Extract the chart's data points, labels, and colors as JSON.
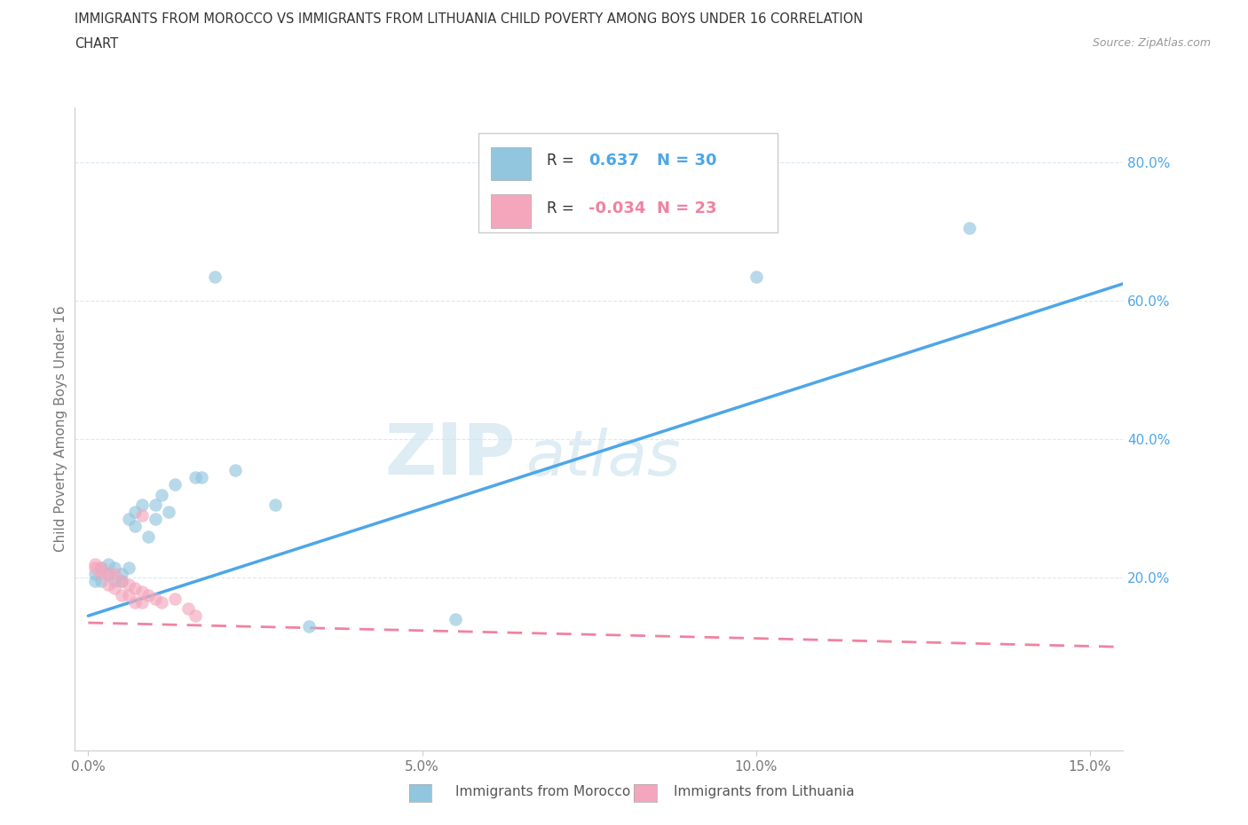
{
  "title_line1": "IMMIGRANTS FROM MOROCCO VS IMMIGRANTS FROM LITHUANIA CHILD POVERTY AMONG BOYS UNDER 16 CORRELATION",
  "title_line2": "CHART",
  "source": "Source: ZipAtlas.com",
  "ylabel": "Child Poverty Among Boys Under 16",
  "xlim": [
    -0.002,
    0.155
  ],
  "ylim": [
    -0.05,
    0.88
  ],
  "xticks": [
    0.0,
    0.05,
    0.1,
    0.15
  ],
  "xticklabels": [
    "0.0%",
    "5.0%",
    "10.0%",
    "15.0%"
  ],
  "ytick_positions": [
    0.2,
    0.4,
    0.6,
    0.8
  ],
  "ytick_labels": [
    "20.0%",
    "40.0%",
    "60.0%",
    "80.0%"
  ],
  "morocco_color": "#92c5de",
  "lithuania_color": "#f4a6bc",
  "morocco_line_color": "#4da6e8",
  "lithuania_line_color": "#f082a0",
  "morocco_R": 0.637,
  "morocco_N": 30,
  "lithuania_R": -0.034,
  "lithuania_N": 23,
  "morocco_scatter": [
    [
      0.001,
      0.205
    ],
    [
      0.001,
      0.195
    ],
    [
      0.002,
      0.215
    ],
    [
      0.002,
      0.195
    ],
    [
      0.003,
      0.22
    ],
    [
      0.003,
      0.205
    ],
    [
      0.004,
      0.215
    ],
    [
      0.004,
      0.195
    ],
    [
      0.005,
      0.205
    ],
    [
      0.005,
      0.195
    ],
    [
      0.006,
      0.215
    ],
    [
      0.006,
      0.285
    ],
    [
      0.007,
      0.295
    ],
    [
      0.007,
      0.275
    ],
    [
      0.008,
      0.305
    ],
    [
      0.009,
      0.26
    ],
    [
      0.01,
      0.285
    ],
    [
      0.01,
      0.305
    ],
    [
      0.011,
      0.32
    ],
    [
      0.012,
      0.295
    ],
    [
      0.013,
      0.335
    ],
    [
      0.016,
      0.345
    ],
    [
      0.017,
      0.345
    ],
    [
      0.019,
      0.635
    ],
    [
      0.022,
      0.355
    ],
    [
      0.028,
      0.305
    ],
    [
      0.033,
      0.13
    ],
    [
      0.055,
      0.14
    ],
    [
      0.1,
      0.635
    ],
    [
      0.132,
      0.705
    ]
  ],
  "lithuania_scatter": [
    [
      0.001,
      0.22
    ],
    [
      0.001,
      0.215
    ],
    [
      0.002,
      0.215
    ],
    [
      0.002,
      0.205
    ],
    [
      0.003,
      0.205
    ],
    [
      0.003,
      0.19
    ],
    [
      0.004,
      0.205
    ],
    [
      0.004,
      0.185
    ],
    [
      0.005,
      0.195
    ],
    [
      0.005,
      0.175
    ],
    [
      0.006,
      0.19
    ],
    [
      0.006,
      0.175
    ],
    [
      0.007,
      0.185
    ],
    [
      0.007,
      0.165
    ],
    [
      0.008,
      0.18
    ],
    [
      0.008,
      0.165
    ],
    [
      0.009,
      0.175
    ],
    [
      0.01,
      0.17
    ],
    [
      0.011,
      0.165
    ],
    [
      0.013,
      0.17
    ],
    [
      0.015,
      0.155
    ],
    [
      0.016,
      0.145
    ],
    [
      0.008,
      0.29
    ]
  ],
  "morocco_trend_x": [
    0.0,
    0.155
  ],
  "morocco_trend_y": [
    0.145,
    0.625
  ],
  "lithuania_trend_x": [
    0.0,
    0.155
  ],
  "lithuania_trend_y": [
    0.135,
    0.1
  ],
  "watermark_line1": "ZIP",
  "watermark_line2": "atlas",
  "background_color": "#ffffff",
  "grid_color": "#dce8f0",
  "grid_style": "--"
}
